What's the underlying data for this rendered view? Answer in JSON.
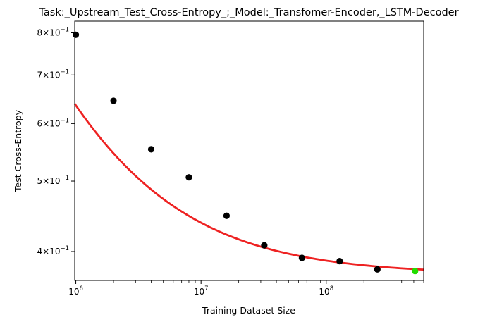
{
  "chart_data": {
    "type": "scatter",
    "title": "Task:_Upstream_Test_Cross-Entropy_;_Model:_Transfomer-Encoder,_LSTM-Decoder",
    "xlabel": "Training Dataset Size",
    "ylabel": "Test Cross-Entropy",
    "xscale": "log",
    "yscale": "log",
    "xlim": [
      980000,
      600000000
    ],
    "ylim": [
      0.365,
      0.83
    ],
    "grid": false,
    "x_ticks": [
      {
        "value": 1000000,
        "base": "10",
        "exp": "6"
      },
      {
        "value": 10000000,
        "base": "10",
        "exp": "7"
      },
      {
        "value": 100000000,
        "base": "10",
        "exp": "8"
      }
    ],
    "y_ticks": [
      {
        "value": 0.4,
        "mantissa": "4",
        "exp": "−1"
      },
      {
        "value": 0.5,
        "mantissa": "5",
        "exp": "−1"
      },
      {
        "value": 0.6,
        "mantissa": "6",
        "exp": "−1"
      },
      {
        "value": 0.7,
        "mantissa": "7",
        "exp": "−1"
      },
      {
        "value": 0.8,
        "mantissa": "8",
        "exp": "−1"
      }
    ],
    "series": [
      {
        "color": "#000000",
        "marker": "circle",
        "x": [
          1000000,
          2000000,
          4000000,
          8000000,
          16000000,
          32000000,
          64000000,
          128000000,
          256000000
        ],
        "y": [
          0.795,
          0.645,
          0.553,
          0.506,
          0.448,
          0.408,
          0.392,
          0.388,
          0.378
        ]
      },
      {
        "color": "#22dd00",
        "marker": "circle",
        "x": [
          512000000
        ],
        "y": [
          0.376
        ]
      }
    ],
    "fit_curve": {
      "color": "#ee2222",
      "form": "y = 0.372 + 1050 * x^(-0.6)",
      "x_range": [
        980000,
        600000000
      ]
    }
  }
}
